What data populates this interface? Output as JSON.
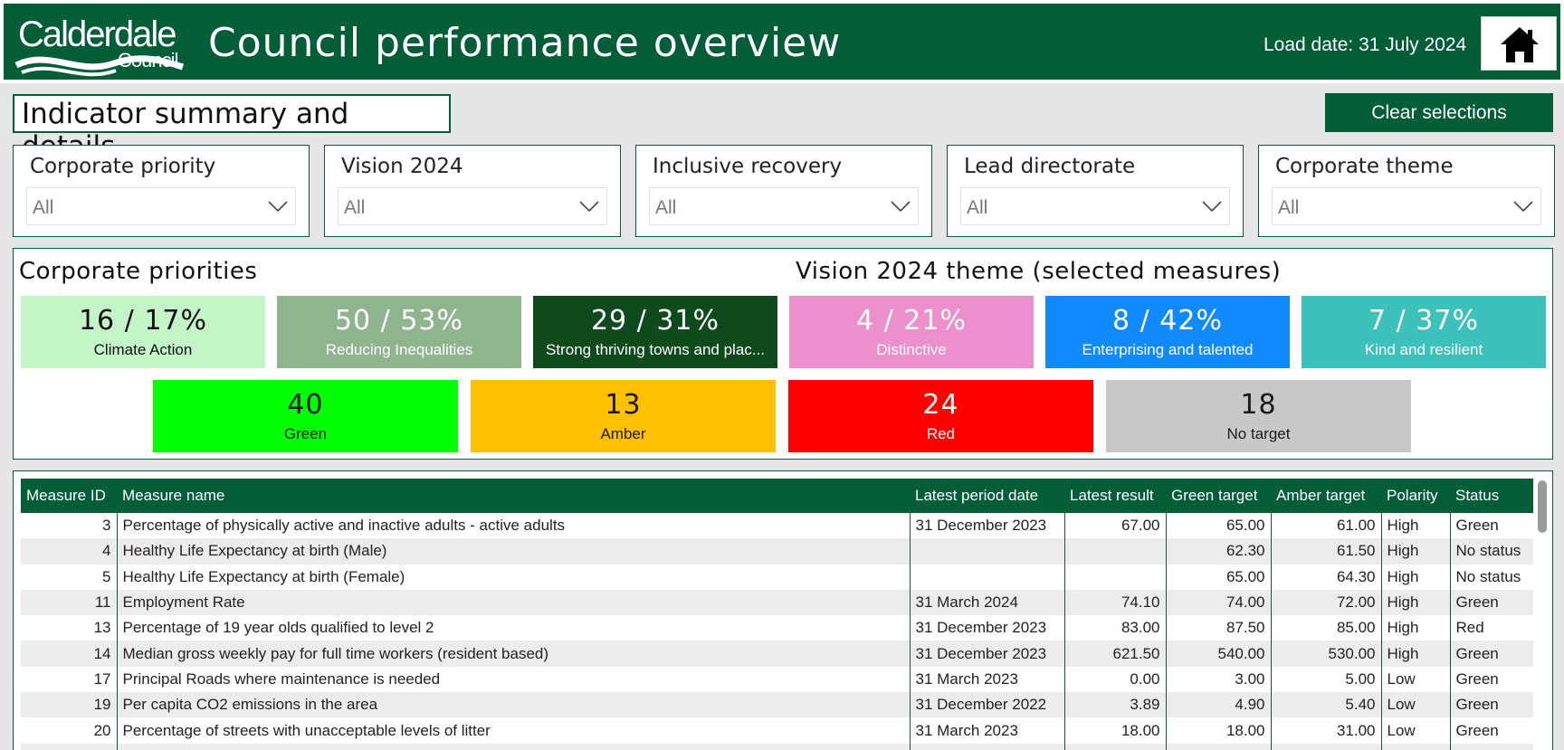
{
  "header": {
    "logo_line1": "Calderdale",
    "logo_line2": "Council",
    "title": "Council performance overview",
    "load_date": "Load date: 31 July 2024",
    "home_icon": "home-icon"
  },
  "section_title": "Indicator summary and details",
  "clear_button": "Clear selections",
  "slicers": [
    {
      "title": "Corporate priority",
      "value": "All"
    },
    {
      "title": "Vision 2024",
      "value": "All"
    },
    {
      "title": "Inclusive recovery",
      "value": "All"
    },
    {
      "title": "Lead directorate",
      "value": "All"
    },
    {
      "title": "Corporate theme",
      "value": "All"
    }
  ],
  "kpi": {
    "corporate_heading": "Corporate priorities",
    "vision_heading": "Vision 2024 theme (selected measures)",
    "priority_cards": [
      {
        "value": "16 / 17%",
        "label": "Climate Action",
        "bg": "#c4f5c6",
        "fg": "#111111"
      },
      {
        "value": "50 / 53%",
        "label": "Reducing Inequalities",
        "bg": "#8fb58f",
        "fg": "#ffffff"
      },
      {
        "value": "29 / 31%",
        "label": "Strong thriving towns and plac...",
        "bg": "#0f4a1c",
        "fg": "#ffffff"
      }
    ],
    "vision_cards": [
      {
        "value": "4 / 21%",
        "label": "Distinctive",
        "bg": "#ec8fcd",
        "fg": "#ffffff"
      },
      {
        "value": "8 / 42%",
        "label": "Enterprising and talented",
        "bg": "#128aff",
        "fg": "#ffffff"
      },
      {
        "value": "7 / 37%",
        "label": "Kind and resilient",
        "bg": "#3dc1bb",
        "fg": "#ffffff"
      }
    ],
    "status_cards": [
      {
        "value": "40",
        "label": "Green",
        "bg": "#00ff00",
        "fg": "#1a1a1a"
      },
      {
        "value": "13",
        "label": "Amber",
        "bg": "#ffc000",
        "fg": "#1a1a1a"
      },
      {
        "value": "24",
        "label": "Red",
        "bg": "#ff0000",
        "fg": "#ffffff"
      },
      {
        "value": "18",
        "label": "No target",
        "bg": "#c8c8c8",
        "fg": "#1a1a1a"
      }
    ]
  },
  "table": {
    "columns": [
      "Measure ID",
      "Measure name",
      "Latest period date",
      "Latest result",
      "Green target",
      "Amber target",
      "Polarity",
      "Status"
    ],
    "rows": [
      [
        "3",
        "Percentage of physically active and inactive adults - active adults",
        "31 December 2023",
        "67.00",
        "65.00",
        "61.00",
        "High",
        "Green"
      ],
      [
        "4",
        "Healthy Life Expectancy at birth (Male)",
        "",
        "",
        "62.30",
        "61.50",
        "High",
        "No status"
      ],
      [
        "5",
        "Healthy Life Expectancy at birth (Female)",
        "",
        "",
        "65.00",
        "64.30",
        "High",
        "No status"
      ],
      [
        "11",
        "Employment Rate",
        "31 March 2024",
        "74.10",
        "74.00",
        "72.00",
        "High",
        "Green"
      ],
      [
        "13",
        "Percentage of 19 year olds qualified to level 2",
        "31 December 2023",
        "83.00",
        "87.50",
        "85.00",
        "High",
        "Red"
      ],
      [
        "14",
        "Median gross weekly pay for full time workers (resident based)",
        "31 December 2023",
        "621.50",
        "540.00",
        "530.00",
        "High",
        "Green"
      ],
      [
        "17",
        "Principal Roads where maintenance is needed",
        "31 March 2023",
        "0.00",
        "3.00",
        "5.00",
        "Low",
        "Green"
      ],
      [
        "19",
        "Per capita CO2 emissions in the area",
        "31 December 2022",
        "3.89",
        "4.90",
        "5.40",
        "Low",
        "Green"
      ],
      [
        "20",
        "Percentage of streets with unacceptable levels of litter",
        "31 March 2023",
        "18.00",
        "18.00",
        "31.00",
        "Low",
        "Green"
      ],
      [
        "",
        "",
        "",
        "",
        "",
        "",
        "",
        ""
      ]
    ]
  },
  "colors": {
    "brand": "#035e37"
  }
}
